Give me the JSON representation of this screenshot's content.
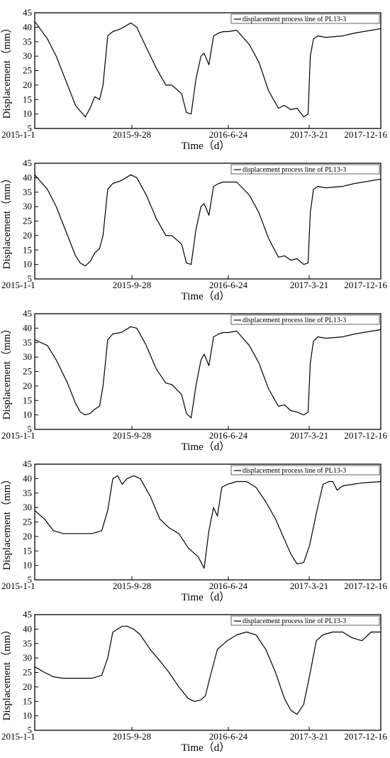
{
  "chart_data": [
    {
      "type": "line",
      "panel": "b",
      "ylabel": "Displacement（mm）",
      "xlabel": "Time（d）",
      "ylim": [
        5,
        45
      ],
      "yticks": [
        5,
        10,
        15,
        20,
        25,
        30,
        35,
        40,
        45
      ],
      "xlim": [
        "2015-01-01",
        "2017-12-31"
      ],
      "xticks": [
        "2015-1-1",
        "2015-9-28",
        "2016-6-24",
        "2017-3-21",
        "2017-12-16"
      ],
      "legend": "top-right",
      "series": [
        {
          "name": "displacement process line of PL13-3",
          "x": [
            "2015-01-01",
            "2015-02-10",
            "2015-03-10",
            "2015-04-15",
            "2015-05-10",
            "2015-05-25",
            "2015-06-10",
            "2015-06-25",
            "2015-07-10",
            "2015-07-25",
            "2015-08-05",
            "2015-08-20",
            "2015-09-05",
            "2015-10-01",
            "2015-11-01",
            "2015-11-20",
            "2015-12-20",
            "2016-01-20",
            "2016-02-20",
            "2016-03-10",
            "2016-04-10",
            "2016-04-25",
            "2016-05-10",
            "2016-05-25",
            "2016-06-10",
            "2016-06-20",
            "2016-07-05",
            "2016-07-20",
            "2016-08-05",
            "2016-08-20",
            "2016-09-05",
            "2016-10-01",
            "2016-11-10",
            "2016-12-10",
            "2017-01-10",
            "2017-02-10",
            "2017-03-01",
            "2017-03-21",
            "2017-04-10",
            "2017-05-01",
            "2017-05-15",
            "2017-05-22",
            "2017-06-01",
            "2017-06-15",
            "2017-07-10",
            "2017-09-01",
            "2017-10-10",
            "2017-12-31"
          ],
          "y": [
            42,
            36,
            30,
            20,
            13,
            11,
            9,
            12,
            16,
            15,
            20,
            37,
            38.5,
            39.5,
            41.5,
            40,
            33,
            26,
            20,
            20,
            17,
            10.5,
            10,
            22,
            30,
            31,
            27,
            37,
            38,
            38.5,
            38.5,
            39,
            34,
            28,
            18,
            12,
            13,
            11.5,
            12,
            9,
            10,
            30,
            36,
            37,
            36.5,
            37,
            38,
            39.5
          ]
        }
      ]
    },
    {
      "type": "line",
      "panel": "c",
      "ylabel": "Displacement（mm）",
      "xlabel": "Time（d）",
      "ylim": [
        5,
        45
      ],
      "yticks": [
        5,
        10,
        15,
        20,
        25,
        30,
        35,
        40,
        45
      ],
      "xlim": [
        "2015-01-01",
        "2017-12-31"
      ],
      "xticks": [
        "2015-1-1",
        "2015-9-28",
        "2016-6-24",
        "2017-3-21",
        "2017-12-16"
      ],
      "legend": "top-right",
      "series": [
        {
          "name": "displacement process line of PL13-3",
          "x": [
            "2015-01-01",
            "2015-02-10",
            "2015-03-10",
            "2015-04-15",
            "2015-05-10",
            "2015-05-25",
            "2015-06-10",
            "2015-06-25",
            "2015-07-10",
            "2015-07-25",
            "2015-08-05",
            "2015-08-20",
            "2015-09-05",
            "2015-10-01",
            "2015-11-01",
            "2015-11-20",
            "2015-12-20",
            "2016-01-20",
            "2016-02-20",
            "2016-03-10",
            "2016-04-10",
            "2016-04-25",
            "2016-05-10",
            "2016-05-25",
            "2016-06-10",
            "2016-06-20",
            "2016-07-05",
            "2016-07-20",
            "2016-08-05",
            "2016-08-20",
            "2016-09-05",
            "2016-10-01",
            "2016-11-10",
            "2016-12-10",
            "2017-01-10",
            "2017-02-10",
            "2017-03-01",
            "2017-03-21",
            "2017-04-10",
            "2017-05-01",
            "2017-05-15",
            "2017-05-22",
            "2017-06-01",
            "2017-06-15",
            "2017-07-10",
            "2017-09-01",
            "2017-10-10",
            "2017-12-31"
          ],
          "y": [
            41,
            36,
            30,
            20,
            13,
            10.5,
            9.5,
            11,
            14,
            15.5,
            20,
            36,
            38,
            39,
            41,
            40,
            34,
            26,
            20,
            20,
            17,
            10.5,
            10,
            22,
            30,
            31,
            27,
            37,
            38,
            38.5,
            38.5,
            38.5,
            34,
            28,
            19,
            12.5,
            13,
            11.5,
            12,
            10,
            10.5,
            28,
            36,
            37,
            36.5,
            37,
            38,
            39.5
          ]
        }
      ]
    },
    {
      "type": "line",
      "panel": "d",
      "ylabel": "Displacement（mm）",
      "xlabel": "Time（d）",
      "ylim": [
        5,
        45
      ],
      "yticks": [
        5,
        10,
        15,
        20,
        25,
        30,
        35,
        40,
        45
      ],
      "xlim": [
        "2015-01-01",
        "2017-12-31"
      ],
      "xticks": [
        "2015-1-1",
        "2015-9-28",
        "2016-6-24",
        "2017-3-21",
        "2017-12-16"
      ],
      "legend": "top-right",
      "series": [
        {
          "name": "displacement process line of PL13-3",
          "x": [
            "2015-01-01",
            "2015-02-10",
            "2015-03-10",
            "2015-04-15",
            "2015-05-10",
            "2015-05-25",
            "2015-06-10",
            "2015-06-25",
            "2015-07-10",
            "2015-07-25",
            "2015-08-05",
            "2015-08-20",
            "2015-09-05",
            "2015-10-01",
            "2015-11-01",
            "2015-11-20",
            "2015-12-20",
            "2016-01-20",
            "2016-02-20",
            "2016-03-10",
            "2016-04-10",
            "2016-04-25",
            "2016-05-10",
            "2016-05-25",
            "2016-06-10",
            "2016-06-20",
            "2016-07-05",
            "2016-07-20",
            "2016-08-05",
            "2016-08-20",
            "2016-09-05",
            "2016-10-01",
            "2016-11-10",
            "2016-12-10",
            "2017-01-10",
            "2017-02-10",
            "2017-03-01",
            "2017-03-21",
            "2017-04-10",
            "2017-05-01",
            "2017-05-15",
            "2017-05-22",
            "2017-06-01",
            "2017-06-15",
            "2017-07-10",
            "2017-09-01",
            "2017-10-10",
            "2017-12-31"
          ],
          "y": [
            36,
            34,
            29,
            21,
            14,
            11,
            10,
            10.5,
            12,
            13,
            20,
            36,
            38,
            38.5,
            40.5,
            40,
            34,
            26,
            21,
            20.5,
            17,
            10.5,
            9,
            20,
            29,
            31,
            27,
            37,
            38,
            38.5,
            38.5,
            39,
            34,
            28,
            19,
            13,
            13.5,
            11.5,
            11,
            10,
            11,
            28,
            35.5,
            37,
            36.5,
            37,
            38,
            39.5
          ]
        }
      ]
    },
    {
      "type": "line",
      "panel": "e",
      "ylabel": "Displacement（mm）",
      "xlabel": "Time（d）",
      "ylim": [
        5,
        45
      ],
      "yticks": [
        5,
        10,
        15,
        20,
        25,
        30,
        35,
        40,
        45
      ],
      "xlim": [
        "2015-01-01",
        "2017-12-31"
      ],
      "xticks": [
        "2015-1-1",
        "2015-9-28",
        "2016-6-24",
        "2017-3-21",
        "2017-12-16"
      ],
      "legend": "top-right",
      "series": [
        {
          "name": "displacement process line of PL13-3",
          "x": [
            "2015-01-01",
            "2015-02-01",
            "2015-03-01",
            "2015-04-01",
            "2015-05-01",
            "2015-06-01",
            "2015-07-01",
            "2015-08-01",
            "2015-08-20",
            "2015-09-05",
            "2015-09-20",
            "2015-10-05",
            "2015-10-20",
            "2015-11-10",
            "2015-12-01",
            "2016-01-01",
            "2016-02-01",
            "2016-03-01",
            "2016-04-01",
            "2016-05-01",
            "2016-06-01",
            "2016-06-20",
            "2016-07-05",
            "2016-07-20",
            "2016-08-01",
            "2016-08-15",
            "2016-09-01",
            "2016-10-01",
            "2016-11-01",
            "2016-12-01",
            "2017-01-01",
            "2017-02-01",
            "2017-03-01",
            "2017-03-21",
            "2017-04-10",
            "2017-05-01",
            "2017-05-20",
            "2017-06-10",
            "2017-07-01",
            "2017-07-20",
            "2017-08-01",
            "2017-08-15",
            "2017-09-01",
            "2017-10-01",
            "2017-11-01",
            "2017-12-31"
          ],
          "y": [
            29,
            26,
            22,
            21,
            21,
            21,
            21,
            22,
            29,
            40,
            41,
            38,
            40,
            41,
            40,
            34,
            26,
            23,
            21,
            16,
            13,
            9,
            22,
            30,
            27,
            37,
            38,
            39,
            39,
            37,
            32,
            26,
            19,
            14,
            10.5,
            11,
            17,
            28,
            38,
            39,
            39,
            36,
            37.5,
            38,
            38.5,
            39
          ]
        }
      ]
    },
    {
      "type": "line",
      "panel": "f",
      "ylabel": "Displacement（mm）",
      "xlabel": "Time（d）",
      "ylim": [
        5,
        45
      ],
      "yticks": [
        5,
        10,
        15,
        20,
        25,
        30,
        35,
        40,
        45
      ],
      "xlim": [
        "2015-01-01",
        "2017-12-31"
      ],
      "xticks": [
        "2015-1-1",
        "2015-9-28",
        "2016-6-24",
        "2017-3-21",
        "2017-12-16"
      ],
      "legend": "top-right",
      "series": [
        {
          "name": "displacement process line of PL13-3",
          "x": [
            "2015-01-01",
            "2015-02-01",
            "2015-03-01",
            "2015-04-01",
            "2015-05-01",
            "2015-06-01",
            "2015-07-01",
            "2015-08-01",
            "2015-08-20",
            "2015-09-05",
            "2015-09-20",
            "2015-10-05",
            "2015-10-20",
            "2015-11-10",
            "2015-12-01",
            "2016-01-01",
            "2016-02-01",
            "2016-03-01",
            "2016-04-01",
            "2016-05-01",
            "2016-05-20",
            "2016-06-10",
            "2016-06-24",
            "2016-07-10",
            "2016-08-01",
            "2016-09-01",
            "2016-10-01",
            "2016-11-01",
            "2016-12-01",
            "2017-01-01",
            "2017-02-01",
            "2017-03-01",
            "2017-03-21",
            "2017-04-10",
            "2017-05-01",
            "2017-05-20",
            "2017-06-10",
            "2017-07-01",
            "2017-08-01",
            "2017-09-01",
            "2017-10-01",
            "2017-11-01",
            "2017-12-01",
            "2017-12-31"
          ],
          "y": [
            27,
            25,
            23.5,
            23,
            23,
            23,
            23,
            24,
            30,
            39,
            40,
            41,
            41,
            40,
            38,
            33,
            29,
            25,
            20,
            16,
            15,
            15.5,
            17,
            24,
            33,
            36,
            38,
            39,
            38,
            33,
            25,
            16,
            12,
            10.5,
            14,
            24,
            36,
            38,
            39,
            39,
            37,
            36,
            39,
            39
          ]
        }
      ]
    }
  ]
}
